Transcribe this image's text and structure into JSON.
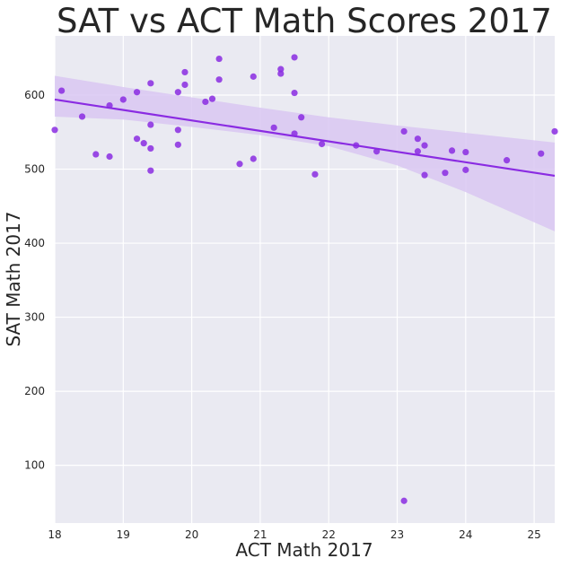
{
  "chart_data": {
    "type": "scatter",
    "title": "SAT vs ACT Math Scores 2017",
    "xlabel": "ACT Math 2017",
    "ylabel": "SAT Math 2017",
    "xlim": [
      18,
      25.3
    ],
    "ylim": [
      22,
      680
    ],
    "xticks": [
      18,
      19,
      20,
      21,
      22,
      23,
      24,
      25
    ],
    "yticks": [
      100,
      200,
      300,
      400,
      500,
      600
    ],
    "grid": true,
    "background_color": "#eaeaf2",
    "grid_color": "#ffffff",
    "point_color": "#8a2be2",
    "fit_line_color": "#8a2be2",
    "band_color": "#d9c7f2",
    "points": [
      {
        "x": 18.0,
        "y": 553
      },
      {
        "x": 18.1,
        "y": 606
      },
      {
        "x": 18.4,
        "y": 571
      },
      {
        "x": 18.6,
        "y": 520
      },
      {
        "x": 18.8,
        "y": 586
      },
      {
        "x": 18.8,
        "y": 517
      },
      {
        "x": 19.0,
        "y": 594
      },
      {
        "x": 19.2,
        "y": 604
      },
      {
        "x": 19.2,
        "y": 541
      },
      {
        "x": 19.3,
        "y": 535
      },
      {
        "x": 19.4,
        "y": 616
      },
      {
        "x": 19.4,
        "y": 560
      },
      {
        "x": 19.4,
        "y": 528
      },
      {
        "x": 19.4,
        "y": 498
      },
      {
        "x": 19.8,
        "y": 604
      },
      {
        "x": 19.8,
        "y": 553
      },
      {
        "x": 19.8,
        "y": 533
      },
      {
        "x": 19.9,
        "y": 631
      },
      {
        "x": 19.9,
        "y": 614
      },
      {
        "x": 20.2,
        "y": 591
      },
      {
        "x": 20.3,
        "y": 595
      },
      {
        "x": 20.4,
        "y": 649
      },
      {
        "x": 20.4,
        "y": 621
      },
      {
        "x": 20.7,
        "y": 507
      },
      {
        "x": 20.9,
        "y": 625
      },
      {
        "x": 20.9,
        "y": 514
      },
      {
        "x": 21.2,
        "y": 556
      },
      {
        "x": 21.3,
        "y": 635
      },
      {
        "x": 21.3,
        "y": 629
      },
      {
        "x": 21.5,
        "y": 651
      },
      {
        "x": 21.5,
        "y": 603
      },
      {
        "x": 21.5,
        "y": 548
      },
      {
        "x": 21.6,
        "y": 570
      },
      {
        "x": 21.8,
        "y": 493
      },
      {
        "x": 21.9,
        "y": 534
      },
      {
        "x": 22.4,
        "y": 532
      },
      {
        "x": 22.7,
        "y": 524
      },
      {
        "x": 23.1,
        "y": 551
      },
      {
        "x": 23.1,
        "y": 52
      },
      {
        "x": 23.3,
        "y": 541
      },
      {
        "x": 23.3,
        "y": 524
      },
      {
        "x": 23.4,
        "y": 532
      },
      {
        "x": 23.4,
        "y": 492
      },
      {
        "x": 23.7,
        "y": 495
      },
      {
        "x": 23.8,
        "y": 525
      },
      {
        "x": 24.0,
        "y": 523
      },
      {
        "x": 24.0,
        "y": 499
      },
      {
        "x": 24.6,
        "y": 512
      },
      {
        "x": 25.1,
        "y": 521
      },
      {
        "x": 25.3,
        "y": 551
      }
    ],
    "regression": {
      "x": [
        18,
        25.3
      ],
      "y": [
        594,
        491
      ]
    },
    "confidence_band": {
      "x": [
        18,
        19,
        20,
        21,
        22,
        23,
        24,
        25.3
      ],
      "upper": [
        626,
        611,
        597,
        583,
        570,
        559,
        549,
        536
      ],
      "lower": [
        571,
        567,
        557,
        546,
        531,
        505,
        469,
        416
      ]
    }
  }
}
